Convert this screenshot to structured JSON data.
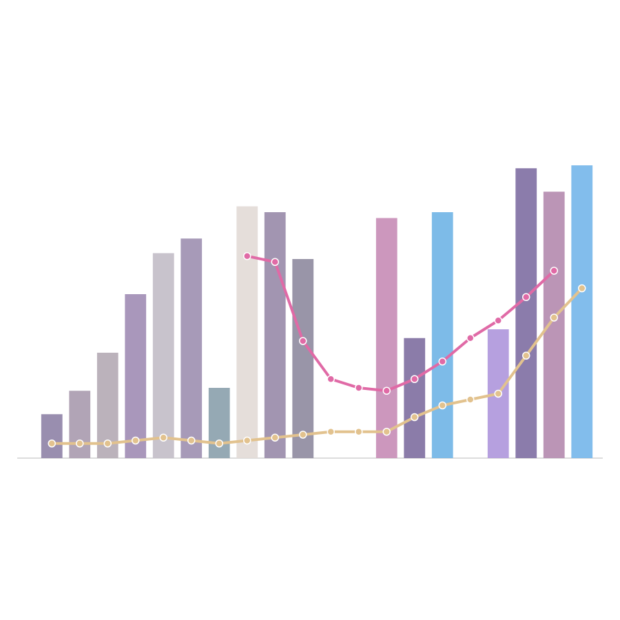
{
  "chart_data": {
    "type": "bar",
    "categories": [
      null,
      null,
      null,
      null,
      null,
      null,
      null,
      null,
      null,
      null,
      null,
      null,
      null,
      null,
      null,
      null,
      null,
      null,
      null,
      null
    ],
    "values": [
      15,
      23,
      36,
      56,
      70,
      75,
      24,
      86,
      84,
      68,
      null,
      null,
      82,
      41,
      84,
      null,
      44,
      99,
      91,
      100
    ],
    "colors": [
      "#8e82a6",
      "#a89aae",
      "#b4aab4",
      "#a08cb4",
      "#c2bcc6",
      "#9d8fb0",
      "#8aa0ac",
      "#e2dad6",
      "#9889a8",
      "#8e8a9e",
      "#d8d4d6",
      "#d8d4d6",
      "#c68cb6",
      "#7e6ea0",
      "#6fb4e6",
      "#d8d4d6",
      "#ae96dc",
      "#7e6ea2",
      "#b48aae",
      "#74b6ea"
    ],
    "ylim": [
      0,
      100
    ],
    "series": [
      {
        "color": "#e06aa6",
        "values": [
          null,
          null,
          null,
          null,
          null,
          null,
          null,
          69,
          67,
          40,
          27,
          24,
          23,
          27,
          33,
          41,
          47,
          55,
          64,
          null
        ]
      },
      {
        "color": "#e2c28e",
        "values": [
          5,
          5,
          5,
          6,
          7,
          6,
          5,
          6,
          7,
          8,
          9,
          9,
          9,
          14,
          18,
          20,
          22,
          35,
          48,
          58
        ]
      }
    ]
  }
}
